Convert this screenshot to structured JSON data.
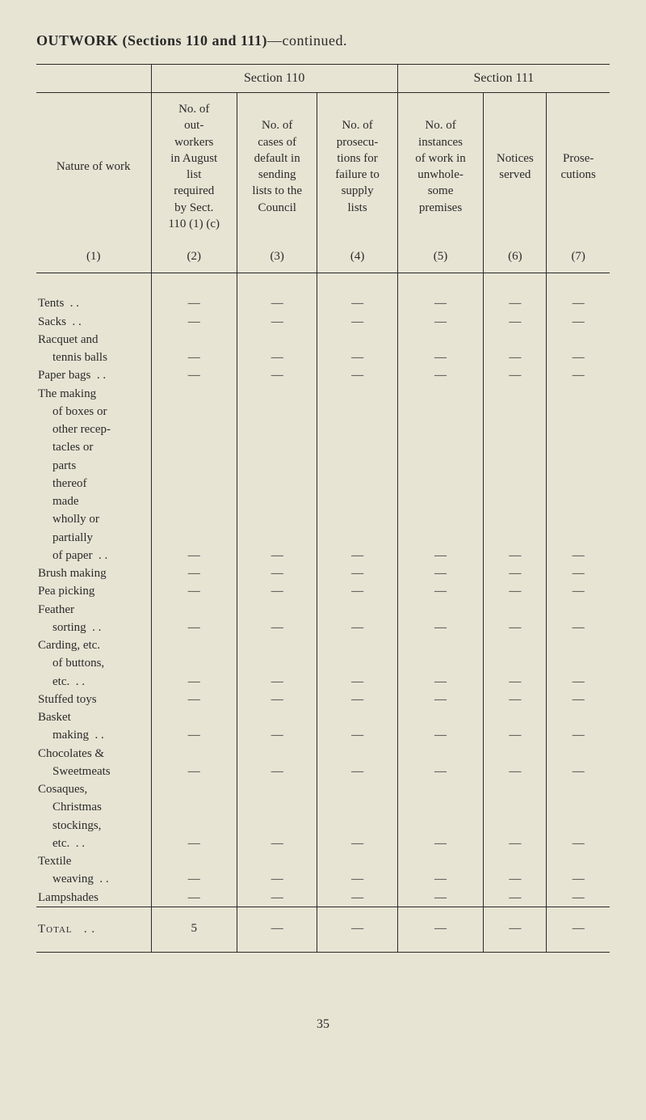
{
  "title_prefix": "OUTWORK (Sections 110 and 111)",
  "title_suffix": "—continued.",
  "section_110": "Section 110",
  "section_111": "Section 111",
  "headers": {
    "nature": "Nature of work",
    "col2": "No. of out-workers in August list required by Sect. 110 (1) (c)",
    "col3": "No. of cases of default in sending lists to the Council",
    "col4": "No. of prosecu-tions for failure to supply lists",
    "col5": "No. of instances of work in unwhole-some premises",
    "col6": "Notices served",
    "col7": "Prose-cutions",
    "n1": "(1)",
    "n2": "(2)",
    "n3": "(3)",
    "n4": "(4)",
    "n5": "(5)",
    "n6": "(6)",
    "n7": "(7)"
  },
  "dash": "—",
  "rows": [
    {
      "label": "Tents",
      "dots": true,
      "dash": true
    },
    {
      "label": "Sacks",
      "dots": true,
      "dash": true
    },
    {
      "label": "Racquet and",
      "dash": false
    },
    {
      "label": "tennis balls",
      "indent": true,
      "dash": true
    },
    {
      "label": "Paper bags",
      "dots": true,
      "dash": true
    },
    {
      "label": "The making",
      "dash": false
    },
    {
      "label": "of boxes or",
      "indent": true,
      "dash": false
    },
    {
      "label": "other recep-",
      "indent": true,
      "dash": false
    },
    {
      "label": "tacles or",
      "indent": true,
      "dash": false
    },
    {
      "label": "parts",
      "indent": true,
      "dash": false
    },
    {
      "label": "thereof",
      "indent": true,
      "dash": false
    },
    {
      "label": "made",
      "indent": true,
      "dash": false
    },
    {
      "label": "wholly or",
      "indent": true,
      "dash": false
    },
    {
      "label": "partially",
      "indent": true,
      "dash": false
    },
    {
      "label": "of paper",
      "indent": true,
      "dots": true,
      "dash": true
    },
    {
      "label": "Brush making",
      "dash": true
    },
    {
      "label": "Pea picking",
      "dash": true
    },
    {
      "label": "Feather",
      "dash": false
    },
    {
      "label": "sorting",
      "indent": true,
      "dots": true,
      "dash": true
    },
    {
      "label": "Carding, etc.",
      "dash": false
    },
    {
      "label": "of buttons,",
      "indent": true,
      "dash": false
    },
    {
      "label": "etc.",
      "indent": true,
      "dots": true,
      "dash": true
    },
    {
      "label": "Stuffed toys",
      "dash": true
    },
    {
      "label": "Basket",
      "dash": false
    },
    {
      "label": "making",
      "indent": true,
      "dots": true,
      "dash": true
    },
    {
      "label": "Chocolates &",
      "dash": false
    },
    {
      "label": "Sweetmeats",
      "indent": true,
      "dash": true
    },
    {
      "label": "Cosaques,",
      "dash": false
    },
    {
      "label": "Christmas",
      "indent": true,
      "dash": false
    },
    {
      "label": "stockings,",
      "indent": true,
      "dash": false
    },
    {
      "label": "etc.",
      "indent": true,
      "dots": true,
      "dash": true
    },
    {
      "label": "Textile",
      "dash": false
    },
    {
      "label": "weaving",
      "indent": true,
      "dots": true,
      "dash": true
    },
    {
      "label": "Lampshades",
      "dash": true
    }
  ],
  "total_label": "Total",
  "total_value": "5",
  "page_number": "35",
  "colors": {
    "bg": "#e8e4d4",
    "fg": "#2a2a2a"
  },
  "dots": ". ."
}
